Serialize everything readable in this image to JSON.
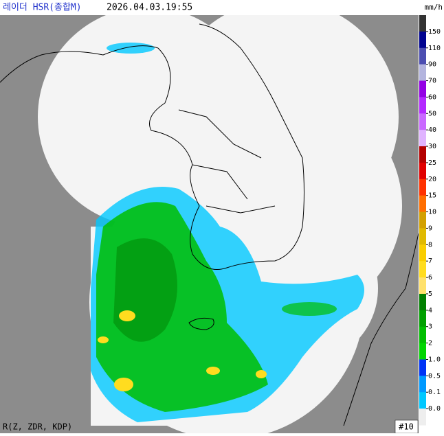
{
  "header": {
    "title": "레이더 HSR(종합M)",
    "timestamp": "2026.04.03.19:55",
    "unit": "mm/h"
  },
  "legend": {
    "labels": [
      "150",
      "110",
      "90",
      "70",
      "60",
      "50",
      "40",
      "30",
      "25",
      "20",
      "15",
      "10",
      "9",
      "8",
      "7",
      "6",
      "5",
      "4",
      "3",
      "2",
      "1.0",
      "0.5",
      "0.1",
      "0.0"
    ],
    "colors": [
      "#333333",
      "#000390",
      "#4c4eb1",
      "#b3b4de",
      "#9300e4",
      "#b329ff",
      "#c969ff",
      "#e0b4ff",
      "#b40000",
      "#e00000",
      "#ff3200",
      "#ff6e00",
      "#d2a000",
      "#e0b900",
      "#f9cd00",
      "#ffdc1f",
      "#ffe16c",
      "#008000",
      "#00a000",
      "#00be00",
      "#00d500",
      "#0033f5",
      "#0099ff",
      "#00c8ff",
      "#eeeeee"
    ]
  },
  "footer": {
    "method": "R(Z, ZDR, KDP)",
    "frame": "#10"
  }
}
